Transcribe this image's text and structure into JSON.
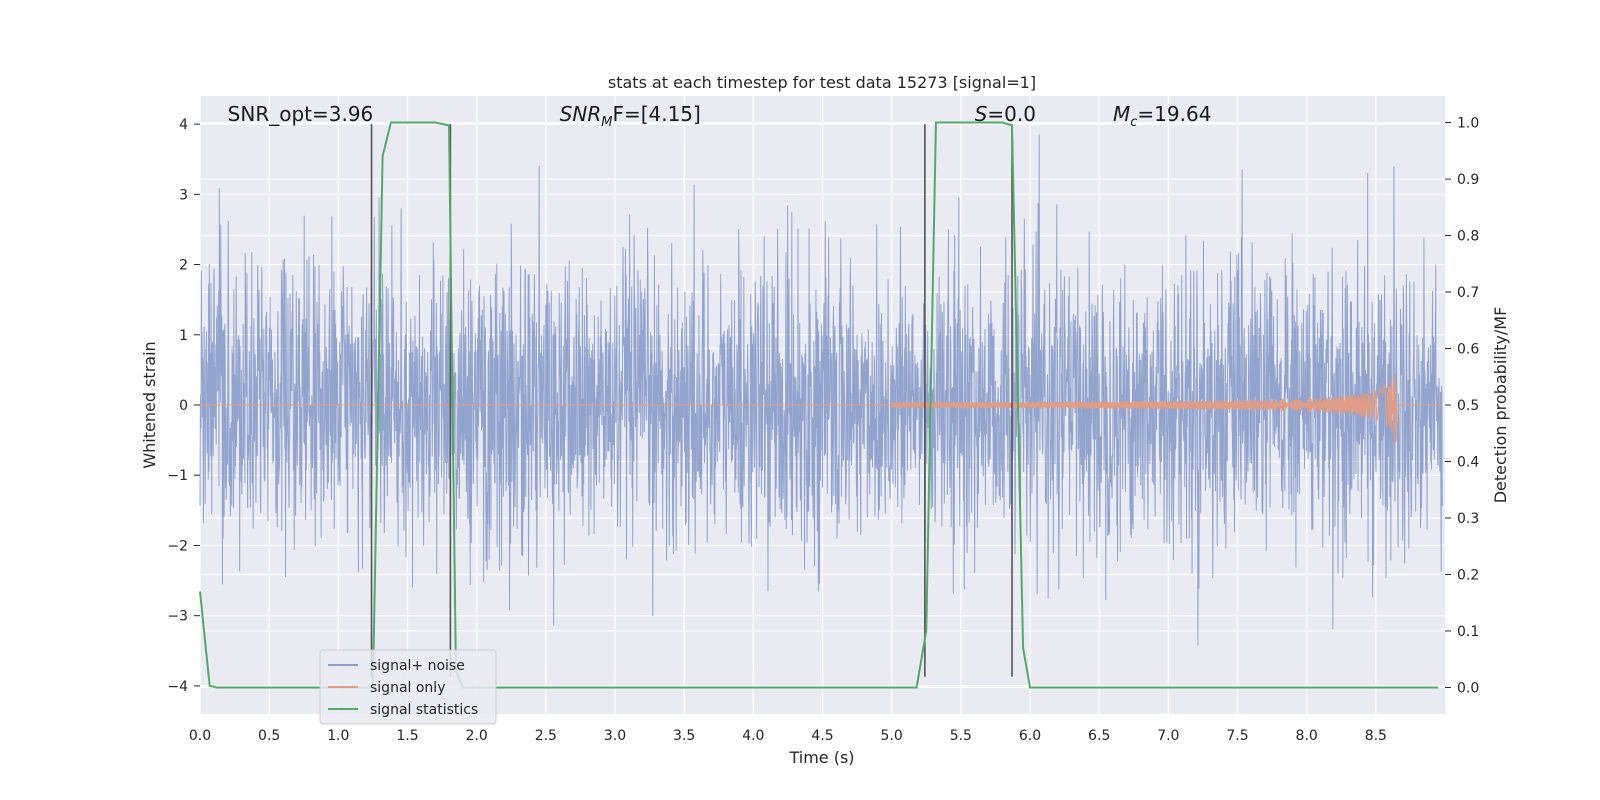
{
  "chart_data": {
    "type": "line",
    "title": "stats at each timestep for test data 15273 [signal=1]",
    "xlabel": "Time (s)",
    "ylabel": "Whitened strain",
    "ylabel_right": "Detection probability/MF",
    "xlim": [
      0.0,
      9.0
    ],
    "ylim": [
      -4.4,
      4.4
    ],
    "ylim_right": [
      -0.047,
      1.047
    ],
    "x_ticks": [
      0.0,
      0.5,
      1.0,
      1.5,
      2.0,
      2.5,
      3.0,
      3.5,
      4.0,
      4.5,
      5.0,
      5.5,
      6.0,
      6.5,
      7.0,
      7.5,
      8.0,
      8.5
    ],
    "x_tick_labels": [
      "0.0",
      "0.5",
      "1.0",
      "1.5",
      "2.0",
      "2.5",
      "3.0",
      "3.5",
      "4.0",
      "4.5",
      "5.0",
      "5.5",
      "6.0",
      "6.5",
      "7.0",
      "7.5",
      "8.0",
      "8.5"
    ],
    "y_ticks": [
      -4,
      -3,
      -2,
      -1,
      0,
      1,
      2,
      3,
      4
    ],
    "y_tick_labels": [
      "−4",
      "−3",
      "−2",
      "−1",
      "0",
      "1",
      "2",
      "3",
      "4"
    ],
    "y_right_ticks": [
      0.0,
      0.1,
      0.2,
      0.3,
      0.4,
      0.5,
      0.6,
      0.7,
      0.8,
      0.9,
      1.0
    ],
    "y_right_tick_labels": [
      "0.0",
      "0.1",
      "0.2",
      "0.3",
      "0.4",
      "0.5",
      "0.6",
      "0.7",
      "0.8",
      "0.9",
      "1.0"
    ],
    "grid": true,
    "legend_position": "lower-left",
    "series": [
      {
        "name": "signal+ noise",
        "color": "#8da0cb",
        "axis": "left",
        "description_noise_std": 1.0
      },
      {
        "name": "signal only",
        "color": "#e09c84",
        "axis": "left",
        "chirp_start_s": 5.0,
        "chirp_end_s": 8.65,
        "chirp_peak_amplitude": 0.8
      },
      {
        "name": "signal statistics",
        "color": "#55a868",
        "axis": "right",
        "x": [
          0.0,
          0.07,
          0.12,
          0.3,
          0.5,
          1.0,
          1.2,
          1.25,
          1.32,
          1.38,
          1.5,
          1.7,
          1.8,
          1.85,
          1.9,
          2.5,
          3.0,
          4.0,
          5.0,
          5.18,
          5.25,
          5.32,
          5.4,
          5.6,
          5.8,
          5.87,
          5.95,
          6.0,
          6.5,
          7.0,
          8.0,
          8.95
        ],
        "y": [
          0.17,
          0.003,
          0.0,
          0.0,
          0.0,
          0.0,
          0.0,
          0.0,
          0.94,
          1.0,
          1.0,
          1.0,
          0.995,
          0.03,
          0.0,
          0.0,
          0.0,
          0.0,
          0.0,
          0.0,
          0.1,
          1.0,
          1.0,
          1.0,
          1.0,
          0.995,
          0.07,
          0.0,
          0.0,
          0.0,
          0.0,
          0.0
        ]
      }
    ],
    "vertical_lines": [
      1.24,
      1.81,
      5.24,
      5.87
    ],
    "vertical_lines_color": "#555555",
    "annotations": [
      {
        "key": "snr_opt",
        "text": "SNR_opt=3.96",
        "x": 0.2,
        "y": 4.1
      },
      {
        "key": "snr_mf",
        "text_main": "SNR",
        "text_sub": "M",
        "text_rest": "F=[4.15]",
        "x": 2.6,
        "y": 4.1
      },
      {
        "key": "s_val",
        "text_main": "S",
        "text_rest": "=0.0",
        "x": 5.6,
        "y": 4.1
      },
      {
        "key": "mc_val",
        "text_main": "M",
        "text_sub": "c",
        "text_rest": "=19.64",
        "x": 6.6,
        "y": 4.1
      }
    ],
    "background_color": "#eaeaf2",
    "grid_color": "#ffffff"
  }
}
